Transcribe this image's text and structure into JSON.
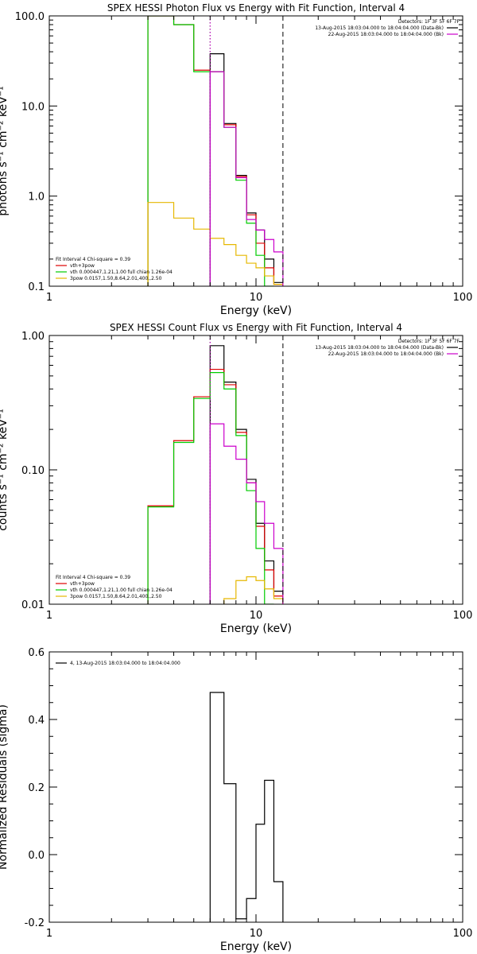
{
  "chart_data": [
    {
      "id": "photon",
      "type": "line",
      "title": "SPEX HESSI Photon Flux vs Energy with Fit Function, Interval 4",
      "xlabel": "Energy (keV)",
      "ylabel": "photons s⁻¹ cm⁻² keV⁻¹",
      "xscale": "log",
      "yscale": "log",
      "xlim": [
        1,
        100
      ],
      "ylim": [
        0.1,
        100
      ],
      "grid": false,
      "xticks": [
        {
          "v": 1,
          "label": "1"
        },
        {
          "v": 10,
          "label": "10"
        },
        {
          "v": 100,
          "label": "100"
        }
      ],
      "yticks": [
        {
          "v": 0.1,
          "label": "0.1"
        },
        {
          "v": 1,
          "label": "1.0"
        },
        {
          "v": 10,
          "label": "10.0"
        },
        {
          "v": 100,
          "label": "100.0"
        }
      ],
      "vlines": [
        {
          "x": 6.0,
          "style": "dotted",
          "color": "#000000"
        },
        {
          "x": 6.0,
          "style": "dotted",
          "color": "#cc00cc"
        },
        {
          "x": 13.5,
          "style": "dashed",
          "color": "#000000"
        }
      ],
      "annotations_right": [
        "Detectors: 1F 3F 5F 6F 7F",
        "13-Aug-2015 18:03:04.000 to 18:04:04.000 (Data-Bk)",
        "22-Aug-2015 18:03:04.000 to 18:04:04.000 (Bk)"
      ],
      "annotations_right_colors": [
        "",
        "#000000",
        "#cc00cc"
      ],
      "legend_title": "Fit Interval  4    Chi-square = 0.39",
      "legend": [
        {
          "label": "vth+3pow",
          "color": "#dd0000"
        },
        {
          "label": "vth 0.000447,1.21,1.00   full chian 1.26e-04",
          "color": "#00cc00"
        },
        {
          "label": "3pow 0.0157,1.50,8.64,2.01,400.,2.50",
          "color": "#e6b800"
        }
      ],
      "series": [
        {
          "name": "data",
          "color": "#000000",
          "steps": [
            [
              6,
              7,
              38
            ],
            [
              7,
              8,
              6.4
            ],
            [
              8,
              9,
              1.7
            ],
            [
              9,
              10,
              0.65
            ],
            [
              10,
              11,
              0.42
            ],
            [
              11,
              12.2,
              0.2
            ],
            [
              12.2,
              13.5,
              0.11
            ]
          ]
        },
        {
          "name": "vth+3pow",
          "color": "#dd0000",
          "steps": [
            [
              3,
              4,
              150
            ],
            [
              4,
              5,
              80
            ],
            [
              5,
              6,
              25
            ],
            [
              6,
              7,
              24
            ],
            [
              7,
              8,
              6.2
            ],
            [
              8,
              9,
              1.65
            ],
            [
              9,
              10,
              0.62
            ],
            [
              10,
              11,
              0.3
            ],
            [
              11,
              12.2,
              0.16
            ],
            [
              12.2,
              13.5,
              0.105
            ]
          ]
        },
        {
          "name": "vth 0.000447,1.21,1.00   full chian 1.26e-04",
          "color": "#00cc00",
          "steps": [
            [
              3,
              4,
              150
            ],
            [
              4,
              5,
              80
            ],
            [
              5,
              6,
              24
            ],
            [
              6,
              7,
              24
            ],
            [
              7,
              8,
              5.8
            ],
            [
              8,
              9,
              1.5
            ],
            [
              9,
              10,
              0.5
            ],
            [
              10,
              11,
              0.22
            ],
            [
              11,
              12.2,
              0.1
            ]
          ]
        },
        {
          "name": "3pow 0.0157,1.50,8.64,2.01,400.,2.50",
          "color": "#e6b800",
          "steps": [
            [
              3,
              4,
              0.85
            ],
            [
              4,
              5,
              0.57
            ],
            [
              5,
              6,
              0.43
            ],
            [
              6,
              7,
              0.34
            ],
            [
              7,
              8,
              0.29
            ],
            [
              8,
              9,
              0.22
            ],
            [
              9,
              10,
              0.18
            ],
            [
              10,
              11,
              0.16
            ],
            [
              11,
              12.2,
              0.13
            ],
            [
              12.2,
              13.5,
              0.105
            ]
          ]
        },
        {
          "name": "background",
          "color": "#cc00cc",
          "steps": [
            [
              6,
              7,
              24
            ],
            [
              7,
              8,
              5.8
            ],
            [
              8,
              9,
              1.6
            ],
            [
              9,
              10,
              0.55
            ],
            [
              10,
              11,
              0.42
            ],
            [
              11,
              12.2,
              0.33
            ],
            [
              12.2,
              13.5,
              0.24
            ]
          ]
        }
      ]
    },
    {
      "id": "count",
      "type": "line",
      "title": "SPEX HESSI Count Flux vs Energy with Fit Function, Interval 4",
      "xlabel": "Energy (keV)",
      "ylabel": "counts s⁻¹ cm⁻² keV⁻¹",
      "xscale": "log",
      "yscale": "log",
      "xlim": [
        1,
        100
      ],
      "ylim": [
        0.01,
        1
      ],
      "grid": false,
      "xticks": [
        {
          "v": 1,
          "label": "1"
        },
        {
          "v": 10,
          "label": "10"
        },
        {
          "v": 100,
          "label": "100"
        }
      ],
      "yticks": [
        {
          "v": 0.01,
          "label": "0.01"
        },
        {
          "v": 0.1,
          "label": "0.10"
        },
        {
          "v": 1,
          "label": "1.00"
        }
      ],
      "vlines": [
        {
          "x": 6.0,
          "style": "dotted",
          "color": "#000000"
        },
        {
          "x": 6.0,
          "style": "dotted",
          "color": "#cc00cc"
        },
        {
          "x": 13.5,
          "style": "dashed",
          "color": "#000000"
        }
      ],
      "annotations_right": [
        "Detectors: 1F 3F 5F 6F 7F",
        "13-Aug-2015 18:03:04.000 to 18:04:04.000 (Data-Bk)",
        "22-Aug-2015 18:03:04.000 to 18:04:04.000 (Bk)"
      ],
      "annotations_right_colors": [
        "",
        "#000000",
        "#cc00cc"
      ],
      "legend_title": "Fit Interval  4    Chi-square = 0.39",
      "legend": [
        {
          "label": "vth+3pow",
          "color": "#dd0000"
        },
        {
          "label": "vth 0.000447,1.21,1.00   full chian 1.26e-04",
          "color": "#00cc00"
        },
        {
          "label": "3pow 0.0157,1.50,8.64,2.01,400.,2.50",
          "color": "#e6b800"
        }
      ],
      "series": [
        {
          "name": "data",
          "color": "#000000",
          "steps": [
            [
              6,
              7,
              0.84
            ],
            [
              7,
              8,
              0.45
            ],
            [
              8,
              9,
              0.2
            ],
            [
              9,
              10,
              0.085
            ],
            [
              10,
              11,
              0.04
            ],
            [
              11,
              12.2,
              0.021
            ],
            [
              12.2,
              13.5,
              0.0125
            ]
          ]
        },
        {
          "name": "vth+3pow",
          "color": "#dd0000",
          "steps": [
            [
              3,
              4,
              0.054
            ],
            [
              4,
              5,
              0.165
            ],
            [
              5,
              6,
              0.35
            ],
            [
              6,
              7,
              0.56
            ],
            [
              7,
              8,
              0.43
            ],
            [
              8,
              9,
              0.19
            ],
            [
              9,
              10,
              0.08
            ],
            [
              10,
              11,
              0.038
            ],
            [
              11,
              12.2,
              0.018
            ],
            [
              12.2,
              13.5,
              0.0115
            ]
          ]
        },
        {
          "name": "vth 0.000447,1.21,1.00   full chian 1.26e-04",
          "color": "#00cc00",
          "steps": [
            [
              3,
              4,
              0.053
            ],
            [
              4,
              5,
              0.16
            ],
            [
              5,
              6,
              0.34
            ],
            [
              6,
              7,
              0.53
            ],
            [
              7,
              8,
              0.4
            ],
            [
              8,
              9,
              0.18
            ],
            [
              9,
              10,
              0.07
            ],
            [
              10,
              11,
              0.026
            ],
            [
              11,
              12.2,
              0.01
            ]
          ]
        },
        {
          "name": "3pow 0.0157,1.50,8.64,2.01,400.,2.50",
          "color": "#e6b800",
          "steps": [
            [
              7,
              8,
              0.011
            ],
            [
              8,
              9,
              0.015
            ],
            [
              9,
              10,
              0.016
            ],
            [
              10,
              11,
              0.015
            ],
            [
              11,
              12.2,
              0.013
            ],
            [
              12.2,
              13.5,
              0.011
            ]
          ]
        },
        {
          "name": "background",
          "color": "#cc00cc",
          "steps": [
            [
              6,
              7,
              0.22
            ],
            [
              7,
              8,
              0.15
            ],
            [
              8,
              9,
              0.12
            ],
            [
              9,
              10,
              0.08
            ],
            [
              10,
              11,
              0.058
            ],
            [
              11,
              12.2,
              0.04
            ],
            [
              12.2,
              13.5,
              0.026
            ]
          ]
        }
      ]
    },
    {
      "id": "residuals",
      "type": "line",
      "title": "",
      "xlabel": "Energy (keV)",
      "ylabel": "Normalized Residuals (sigma)",
      "xscale": "log",
      "yscale": "linear",
      "xlim": [
        1,
        100
      ],
      "ylim": [
        -0.2,
        0.6
      ],
      "grid": false,
      "xticks": [
        {
          "v": 1,
          "label": "1"
        },
        {
          "v": 10,
          "label": "10"
        },
        {
          "v": 100,
          "label": "100"
        }
      ],
      "yticks": [
        {
          "v": -0.2,
          "label": "-0.2"
        },
        {
          "v": 0,
          "label": "0.0"
        },
        {
          "v": 0.2,
          "label": "0.2"
        },
        {
          "v": 0.4,
          "label": "0.4"
        },
        {
          "v": 0.6,
          "label": "0.6"
        }
      ],
      "vlines": [],
      "annotations_right": [],
      "annotations_right_colors": [],
      "legend_title": "",
      "legend": [
        {
          "label": "4, 13-Aug-2015 18:03:04.000 to 18:04:04.000",
          "color": "#000000"
        }
      ],
      "series": [
        {
          "name": "4, 13-Aug-2015 18:03:04.000 to 18:04:04.000",
          "color": "#000000",
          "steps": [
            [
              6,
              7,
              0.48
            ],
            [
              7,
              8,
              0.21
            ],
            [
              8,
              9,
              -0.19
            ],
            [
              9,
              10,
              -0.13
            ],
            [
              10,
              11,
              0.09
            ],
            [
              11,
              12.2,
              0.22
            ],
            [
              12.2,
              13.5,
              -0.08
            ]
          ],
          "close_to_bottom": true
        }
      ]
    }
  ]
}
